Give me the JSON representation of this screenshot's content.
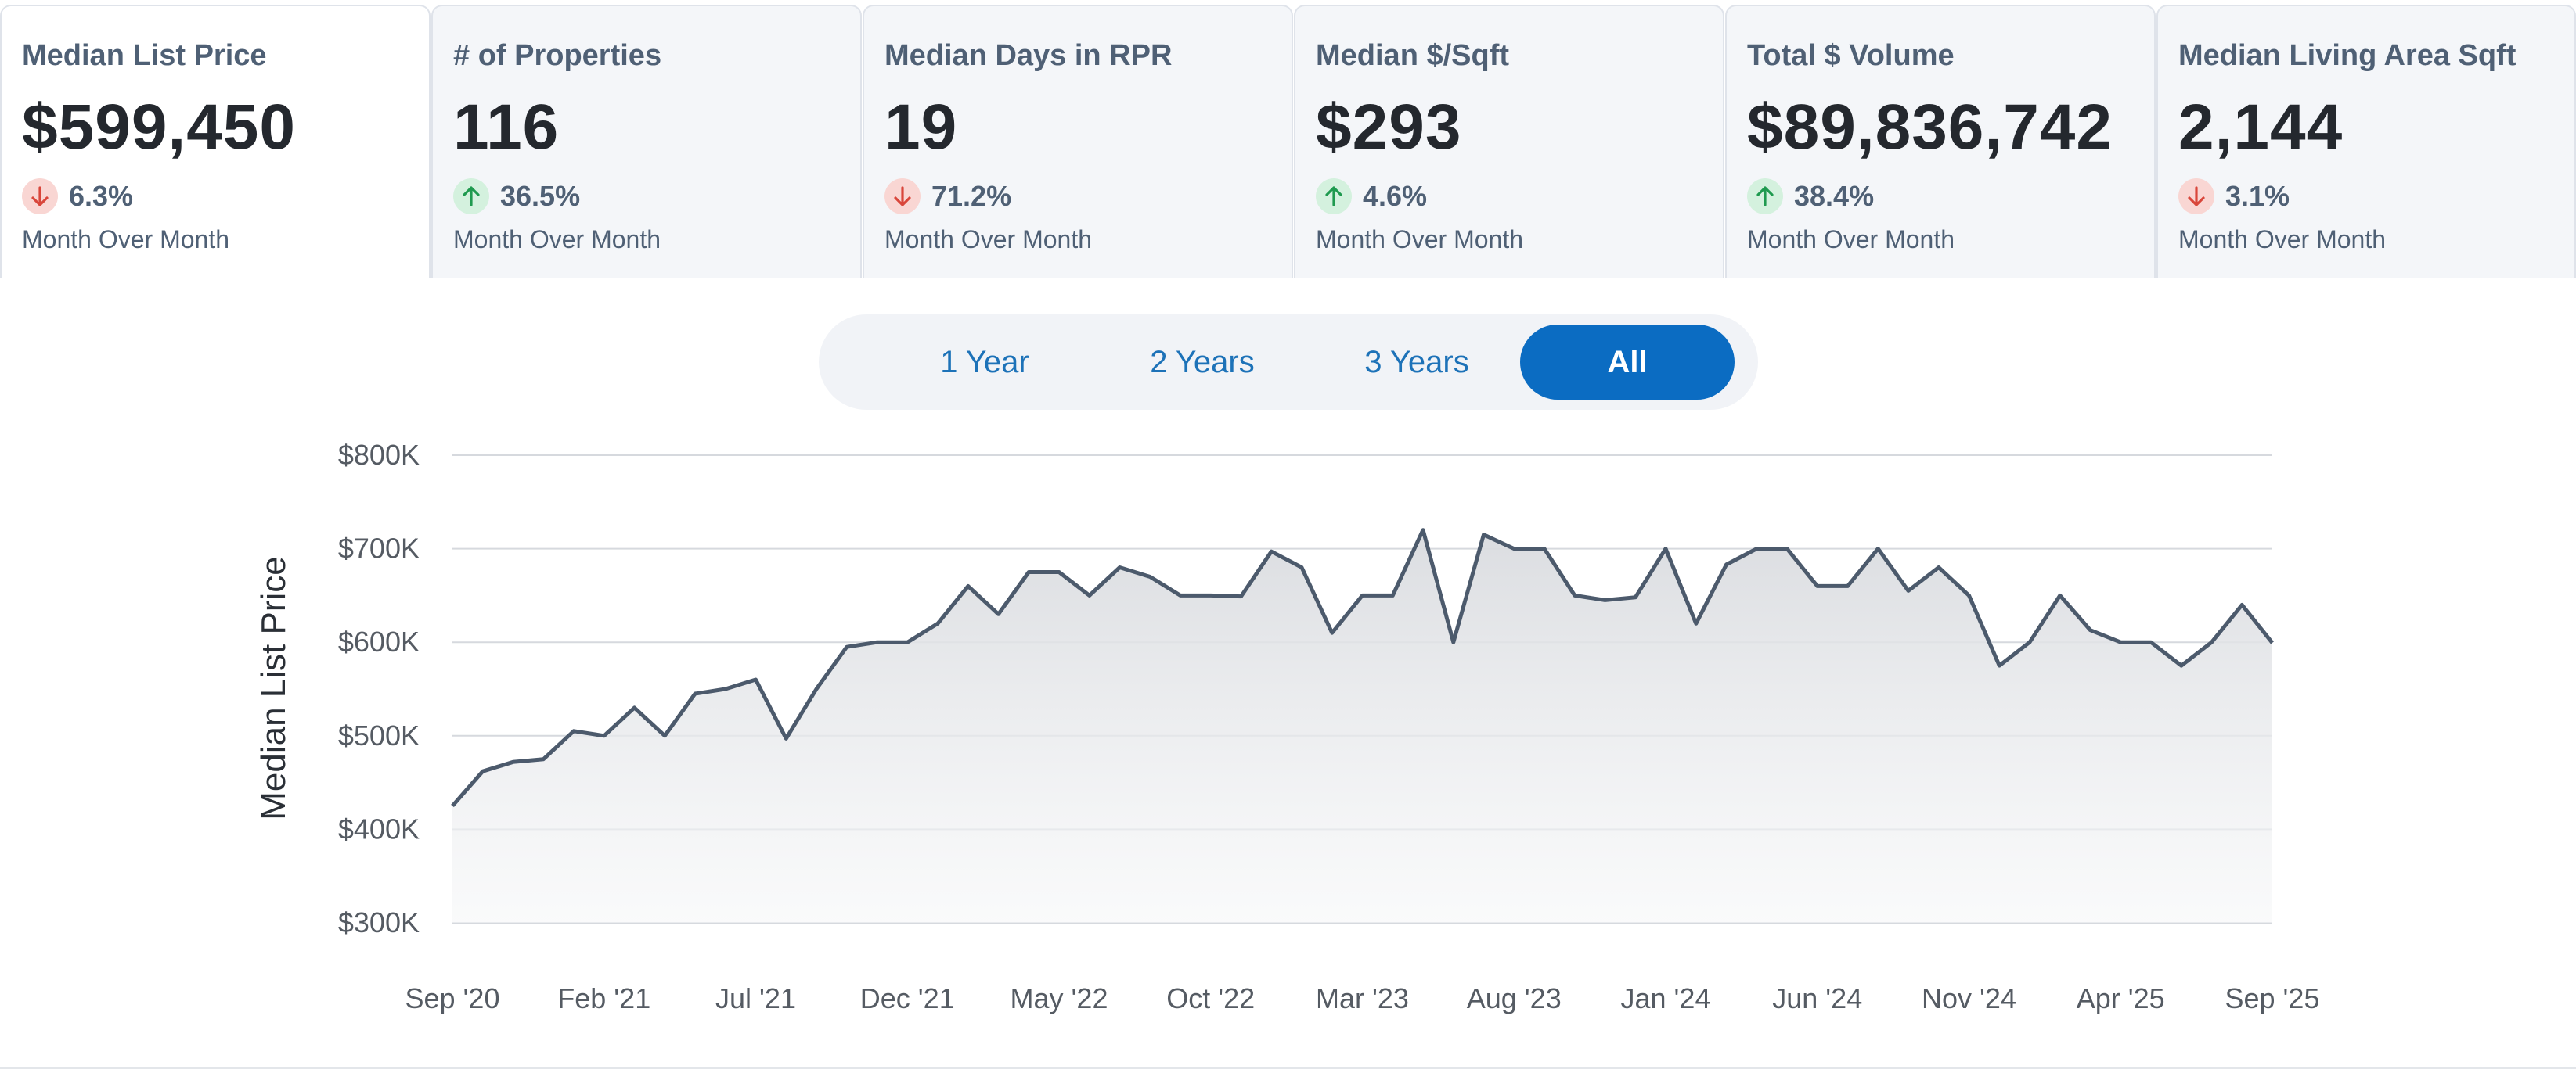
{
  "cards": [
    {
      "title": "Median List Price",
      "value": "$599,450",
      "direction": "down",
      "pct": "6.3%",
      "sub": "Month Over Month",
      "active": true
    },
    {
      "title": "# of Properties",
      "value": "116",
      "direction": "up",
      "pct": "36.5%",
      "sub": "Month Over Month",
      "active": false
    },
    {
      "title": "Median Days in RPR",
      "value": "19",
      "direction": "down",
      "pct": "71.2%",
      "sub": "Month Over Month",
      "active": false
    },
    {
      "title": "Median $/Sqft",
      "value": "$293",
      "direction": "up",
      "pct": "4.6%",
      "sub": "Month Over Month",
      "active": false
    },
    {
      "title": "Total $ Volume",
      "value": "$89,836,742",
      "direction": "up",
      "pct": "38.4%",
      "sub": "Month Over Month",
      "active": false
    },
    {
      "title": "Median Living Area Sqft",
      "value": "2,144",
      "direction": "down",
      "pct": "3.1%",
      "sub": "Month Over Month",
      "active": false
    }
  ],
  "range_toggle": {
    "options": [
      "1 Year",
      "2 Years",
      "3 Years",
      "All"
    ],
    "selected": "All"
  },
  "colors": {
    "down_arrow": "#d9463b",
    "up_arrow": "#1f9a4f",
    "line": "#4c5a6c",
    "accent": "#0b6cc2"
  },
  "chart_data": {
    "type": "area",
    "ylabel": "Median List Price",
    "ylim": [
      300000,
      800000
    ],
    "yticks": [
      "$300K",
      "$400K",
      "$500K",
      "$600K",
      "$700K",
      "$800K"
    ],
    "xtick_labels": [
      "Sep '20",
      "Feb '21",
      "Jul '21",
      "Dec '21",
      "May '22",
      "Oct '22",
      "Mar '23",
      "Aug '23",
      "Jan '24",
      "Jun '24",
      "Nov '24",
      "Apr '25",
      "Sep '25"
    ],
    "grid": true,
    "x": [
      "Sep '20",
      "Oct '20",
      "Nov '20",
      "Dec '20",
      "Jan '21",
      "Feb '21",
      "Mar '21",
      "Apr '21",
      "May '21",
      "Jun '21",
      "Jul '21",
      "Aug '21",
      "Sep '21",
      "Oct '21",
      "Nov '21",
      "Dec '21",
      "Jan '22",
      "Feb '22",
      "Mar '22",
      "Apr '22",
      "May '22",
      "Jun '22",
      "Jul '22",
      "Aug '22",
      "Sep '22",
      "Oct '22",
      "Nov '22",
      "Dec '22",
      "Jan '23",
      "Feb '23",
      "Mar '23",
      "Apr '23",
      "May '23",
      "Jun '23",
      "Jul '23",
      "Aug '23",
      "Sep '23",
      "Oct '23",
      "Nov '23",
      "Dec '23",
      "Jan '24",
      "Feb '24",
      "Mar '24",
      "Apr '24",
      "May '24",
      "Jun '24",
      "Jul '24",
      "Aug '24",
      "Sep '24",
      "Oct '24",
      "Nov '24",
      "Dec '24",
      "Jan '25",
      "Feb '25",
      "Mar '25",
      "Apr '25",
      "May '25",
      "Jun '25",
      "Jul '25",
      "Aug '25",
      "Sep '25"
    ],
    "values": [
      425000,
      462000,
      472000,
      475000,
      505000,
      500000,
      530000,
      500000,
      545000,
      550000,
      560000,
      497000,
      550000,
      595000,
      600000,
      600000,
      620000,
      660000,
      630000,
      675000,
      675000,
      650000,
      680000,
      670000,
      650000,
      650000,
      649000,
      697000,
      680000,
      610000,
      650000,
      650000,
      720000,
      600000,
      715000,
      700000,
      700000,
      650000,
      645000,
      648000,
      700000,
      620000,
      683000,
      700000,
      700000,
      660000,
      660000,
      700000,
      655000,
      680000,
      650000,
      575000,
      600000,
      650000,
      613000,
      600000,
      600000,
      575000,
      600000,
      640000,
      599450
    ]
  }
}
